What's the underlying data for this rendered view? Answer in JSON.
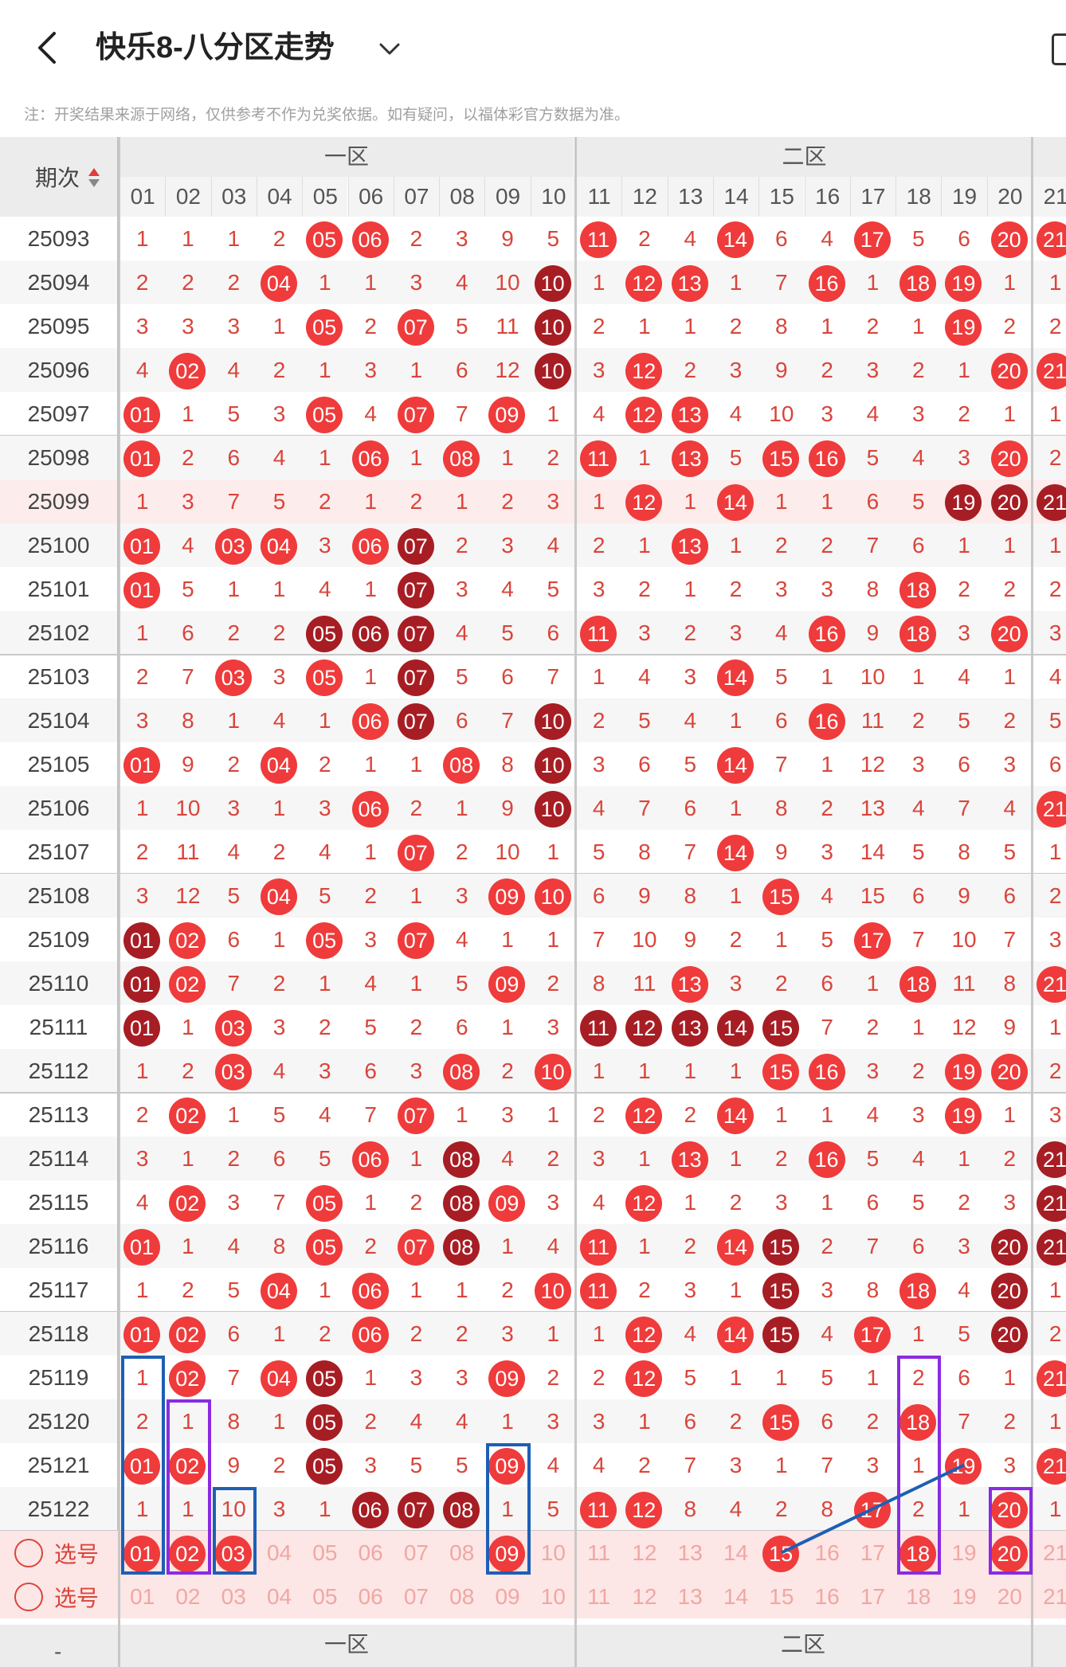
{
  "header": {
    "title": "快乐8-八分区走势",
    "back_icon": "back-arrow-icon",
    "dropdown_icon": "chevron-down-icon"
  },
  "note": "注：开奖结果来源于网络，仅供参考不作为兑奖依据。如有疑问，以福体彩官方数据为准。",
  "table": {
    "period_header": "期次",
    "zones": [
      "一区",
      "二区"
    ],
    "columns": [
      "01",
      "02",
      "03",
      "04",
      "05",
      "06",
      "07",
      "08",
      "09",
      "10",
      "11",
      "12",
      "13",
      "14",
      "15",
      "16",
      "17",
      "18",
      "19",
      "20",
      "21"
    ],
    "rows": [
      {
        "p": "25093",
        "c": [
          "1",
          "1",
          "1",
          "2",
          "R:05",
          "R:06",
          "2",
          "3",
          "9",
          "5",
          "R:11",
          "2",
          "4",
          "R:14",
          "6",
          "4",
          "R:17",
          "5",
          "6",
          "R:20",
          "R:21"
        ]
      },
      {
        "p": "25094",
        "c": [
          "2",
          "2",
          "2",
          "R:04",
          "1",
          "1",
          "3",
          "4",
          "10",
          "D:10",
          "1",
          "R:12",
          "R:13",
          "1",
          "7",
          "R:16",
          "1",
          "R:18",
          "R:19",
          "1",
          "1"
        ]
      },
      {
        "p": "25095",
        "c": [
          "3",
          "3",
          "3",
          "1",
          "R:05",
          "2",
          "R:07",
          "5",
          "11",
          "D:10",
          "2",
          "1",
          "1",
          "2",
          "8",
          "1",
          "2",
          "1",
          "R:19",
          "2",
          "2"
        ]
      },
      {
        "p": "25096",
        "c": [
          "4",
          "R:02",
          "4",
          "2",
          "1",
          "3",
          "1",
          "6",
          "12",
          "D:10",
          "3",
          "R:12",
          "2",
          "3",
          "9",
          "2",
          "3",
          "2",
          "1",
          "R:20",
          "R:21"
        ]
      },
      {
        "p": "25097",
        "c": [
          "R:01",
          "1",
          "5",
          "3",
          "R:05",
          "4",
          "R:07",
          "7",
          "R:09",
          "1",
          "4",
          "R:12",
          "R:13",
          "4",
          "10",
          "3",
          "4",
          "3",
          "2",
          "1",
          "1"
        ]
      },
      {
        "p": "25098",
        "c": [
          "R:01",
          "2",
          "6",
          "4",
          "1",
          "R:06",
          "1",
          "R:08",
          "1",
          "2",
          "R:11",
          "1",
          "R:13",
          "5",
          "R:15",
          "R:16",
          "5",
          "4",
          "3",
          "R:20",
          "2"
        ]
      },
      {
        "p": "25099",
        "c": [
          "1",
          "3",
          "7",
          "5",
          "2",
          "1",
          "2",
          "1",
          "2",
          "3",
          "1",
          "R:12",
          "1",
          "R:14",
          "1",
          "1",
          "6",
          "5",
          "D:19",
          "D:20",
          "D:21"
        ]
      },
      {
        "p": "25100",
        "c": [
          "R:01",
          "4",
          "R:03",
          "R:04",
          "3",
          "R:06",
          "D:07",
          "2",
          "3",
          "4",
          "2",
          "1",
          "R:13",
          "1",
          "2",
          "2",
          "7",
          "6",
          "1",
          "1",
          "1"
        ]
      },
      {
        "p": "25101",
        "c": [
          "R:01",
          "5",
          "1",
          "1",
          "4",
          "1",
          "D:07",
          "3",
          "4",
          "5",
          "3",
          "2",
          "1",
          "2",
          "3",
          "3",
          "8",
          "R:18",
          "2",
          "2",
          "2"
        ]
      },
      {
        "p": "25102",
        "c": [
          "1",
          "6",
          "2",
          "2",
          "D:05",
          "D:06",
          "D:07",
          "4",
          "5",
          "6",
          "R:11",
          "3",
          "2",
          "3",
          "4",
          "R:16",
          "9",
          "R:18",
          "3",
          "R:20",
          "3"
        ]
      },
      {
        "p": "25103",
        "c": [
          "2",
          "7",
          "R:03",
          "3",
          "R:05",
          "1",
          "D:07",
          "5",
          "6",
          "7",
          "1",
          "4",
          "3",
          "R:14",
          "5",
          "1",
          "10",
          "1",
          "4",
          "1",
          "4"
        ]
      },
      {
        "p": "25104",
        "c": [
          "3",
          "8",
          "1",
          "4",
          "1",
          "R:06",
          "D:07",
          "6",
          "7",
          "D:10",
          "2",
          "5",
          "4",
          "1",
          "6",
          "R:16",
          "11",
          "2",
          "5",
          "2",
          "5"
        ]
      },
      {
        "p": "25105",
        "c": [
          "R:01",
          "9",
          "2",
          "R:04",
          "2",
          "1",
          "1",
          "R:08",
          "8",
          "D:10",
          "3",
          "6",
          "5",
          "R:14",
          "7",
          "1",
          "12",
          "3",
          "6",
          "3",
          "6"
        ]
      },
      {
        "p": "25106",
        "c": [
          "1",
          "10",
          "3",
          "1",
          "3",
          "R:06",
          "2",
          "1",
          "9",
          "D:10",
          "4",
          "7",
          "6",
          "1",
          "8",
          "2",
          "13",
          "4",
          "7",
          "4",
          "R:21"
        ]
      },
      {
        "p": "25107",
        "c": [
          "2",
          "11",
          "4",
          "2",
          "4",
          "1",
          "R:07",
          "2",
          "10",
          "1",
          "5",
          "8",
          "7",
          "R:14",
          "9",
          "3",
          "14",
          "5",
          "8",
          "5",
          "1"
        ]
      },
      {
        "p": "25108",
        "c": [
          "3",
          "12",
          "5",
          "R:04",
          "5",
          "2",
          "1",
          "3",
          "R:09",
          "R:10",
          "6",
          "9",
          "8",
          "1",
          "R:15",
          "4",
          "15",
          "6",
          "9",
          "6",
          "2"
        ]
      },
      {
        "p": "25109",
        "c": [
          "D:01",
          "R:02",
          "6",
          "1",
          "R:05",
          "3",
          "R:07",
          "4",
          "1",
          "1",
          "7",
          "10",
          "9",
          "2",
          "1",
          "5",
          "R:17",
          "7",
          "10",
          "7",
          "3"
        ]
      },
      {
        "p": "25110",
        "c": [
          "D:01",
          "R:02",
          "7",
          "2",
          "1",
          "4",
          "1",
          "5",
          "R:09",
          "2",
          "8",
          "11",
          "R:13",
          "3",
          "2",
          "6",
          "1",
          "R:18",
          "11",
          "8",
          "R:21"
        ]
      },
      {
        "p": "25111",
        "c": [
          "D:01",
          "1",
          "R:03",
          "3",
          "2",
          "5",
          "2",
          "6",
          "1",
          "3",
          "D:11",
          "D:12",
          "D:13",
          "D:14",
          "D:15",
          "7",
          "2",
          "1",
          "12",
          "9",
          "1"
        ]
      },
      {
        "p": "25112",
        "c": [
          "1",
          "2",
          "R:03",
          "4",
          "3",
          "6",
          "3",
          "R:08",
          "2",
          "R:10",
          "1",
          "1",
          "1",
          "1",
          "R:15",
          "R:16",
          "3",
          "2",
          "R:19",
          "R:20",
          "2"
        ]
      },
      {
        "p": "25113",
        "c": [
          "2",
          "R:02",
          "1",
          "5",
          "4",
          "7",
          "R:07",
          "1",
          "3",
          "1",
          "2",
          "R:12",
          "2",
          "R:14",
          "1",
          "1",
          "4",
          "3",
          "R:19",
          "1",
          "3"
        ]
      },
      {
        "p": "25114",
        "c": [
          "3",
          "1",
          "2",
          "6",
          "5",
          "R:06",
          "1",
          "D:08",
          "4",
          "2",
          "3",
          "1",
          "R:13",
          "1",
          "2",
          "R:16",
          "5",
          "4",
          "1",
          "2",
          "D:21"
        ]
      },
      {
        "p": "25115",
        "c": [
          "4",
          "R:02",
          "3",
          "7",
          "R:05",
          "1",
          "2",
          "D:08",
          "R:09",
          "3",
          "4",
          "R:12",
          "1",
          "2",
          "3",
          "1",
          "6",
          "5",
          "2",
          "3",
          "D:21"
        ]
      },
      {
        "p": "25116",
        "c": [
          "R:01",
          "1",
          "4",
          "8",
          "R:05",
          "2",
          "R:07",
          "D:08",
          "1",
          "4",
          "R:11",
          "1",
          "2",
          "R:14",
          "D:15",
          "2",
          "7",
          "6",
          "3",
          "D:20",
          "D:21"
        ]
      },
      {
        "p": "25117",
        "c": [
          "1",
          "2",
          "5",
          "R:04",
          "1",
          "R:06",
          "1",
          "1",
          "2",
          "R:10",
          "R:11",
          "2",
          "3",
          "1",
          "D:15",
          "3",
          "8",
          "R:18",
          "4",
          "D:20",
          "1"
        ]
      },
      {
        "p": "25118",
        "c": [
          "R:01",
          "R:02",
          "6",
          "1",
          "2",
          "R:06",
          "2",
          "2",
          "3",
          "1",
          "1",
          "R:12",
          "4",
          "R:14",
          "D:15",
          "4",
          "R:17",
          "1",
          "5",
          "D:20",
          "2"
        ]
      },
      {
        "p": "25119",
        "c": [
          "1",
          "R:02",
          "7",
          "R:04",
          "D:05",
          "1",
          "3",
          "3",
          "R:09",
          "2",
          "2",
          "R:12",
          "5",
          "1",
          "1",
          "5",
          "1",
          "2",
          "6",
          "1",
          "R:21"
        ]
      },
      {
        "p": "25120",
        "c": [
          "2",
          "1",
          "8",
          "1",
          "D:05",
          "2",
          "4",
          "4",
          "1",
          "3",
          "3",
          "1",
          "6",
          "2",
          "R:15",
          "6",
          "2",
          "R:18",
          "7",
          "2",
          "1"
        ]
      },
      {
        "p": "25121",
        "c": [
          "R:01",
          "R:02",
          "9",
          "2",
          "D:05",
          "3",
          "5",
          "5",
          "R:09",
          "4",
          "4",
          "2",
          "7",
          "3",
          "1",
          "7",
          "3",
          "1",
          "R:19",
          "3",
          "R:21"
        ]
      },
      {
        "p": "25122",
        "c": [
          "1",
          "1",
          "10",
          "3",
          "1",
          "D:06",
          "D:07",
          "D:08",
          "1",
          "5",
          "R:11",
          "R:12",
          "8",
          "4",
          "2",
          "8",
          "R:17",
          "2",
          "1",
          "R:20",
          "1"
        ]
      }
    ],
    "select_label": "选号",
    "select_row1": [
      "R:01",
      "R:02",
      "R:03",
      "04",
      "05",
      "06",
      "07",
      "08",
      "R:09",
      "10",
      "11",
      "12",
      "13",
      "14",
      "R:15",
      "16",
      "17",
      "R:18",
      "19",
      "R:20",
      "21"
    ],
    "select_row2": [
      "01",
      "02",
      "03",
      "04",
      "05",
      "06",
      "07",
      "08",
      "09",
      "10",
      "11",
      "12",
      "13",
      "14",
      "15",
      "16",
      "17",
      "18",
      "19",
      "20",
      "21"
    ],
    "bottom_dash": "-"
  },
  "colors": {
    "ball_red": "#ef3b3b",
    "ball_dark": "#a71d24",
    "mark_blue": "#1e5fb4",
    "mark_purple": "#8a2be2"
  }
}
